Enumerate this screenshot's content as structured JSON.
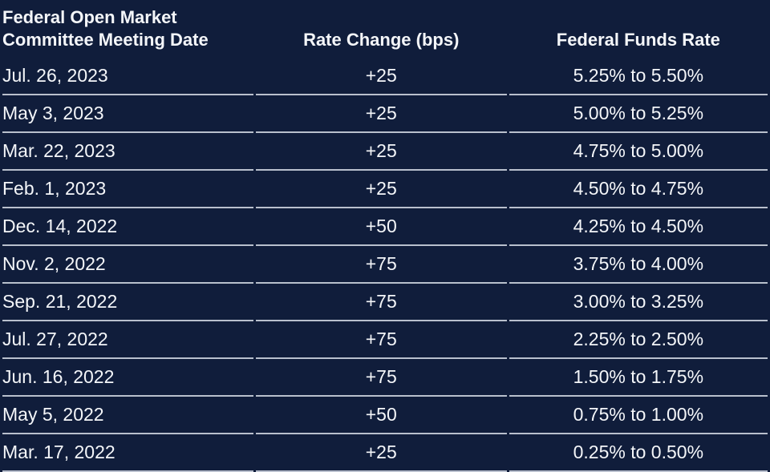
{
  "colors": {
    "background": "#101d3b",
    "text": "#f4f6f9",
    "divider": "#b9c0cd"
  },
  "table": {
    "headers": [
      {
        "line1": "Federal Open Market",
        "line2": "Committee Meeting Date"
      },
      {
        "line1": "Rate Change (bps)"
      },
      {
        "line1": "Federal Funds Rate"
      }
    ]
  },
  "chart_data": {
    "type": "table",
    "columns": [
      "Federal Open Market Committee Meeting Date",
      "Rate Change (bps)",
      "Federal Funds Rate"
    ],
    "rows": [
      [
        "Jul. 26, 2023",
        "+25",
        "5.25% to 5.50%"
      ],
      [
        "May 3, 2023",
        "+25",
        "5.00% to 5.25%"
      ],
      [
        "Mar. 22, 2023",
        "+25",
        "4.75% to 5.00%"
      ],
      [
        "Feb. 1, 2023",
        "+25",
        "4.50% to 4.75%"
      ],
      [
        "Dec. 14, 2022",
        "+50",
        "4.25% to 4.50%"
      ],
      [
        "Nov. 2, 2022",
        "+75",
        "3.75% to 4.00%"
      ],
      [
        "Sep. 21, 2022",
        "+75",
        "3.00% to 3.25%"
      ],
      [
        "Jul. 27, 2022",
        "+75",
        "2.25% to 2.50%"
      ],
      [
        "Jun. 16, 2022",
        "+75",
        "1.50% to 1.75%"
      ],
      [
        "May 5, 2022",
        "+50",
        "0.75% to 1.00%"
      ],
      [
        "Mar. 17, 2022",
        "+25",
        "0.25% to 0.50%"
      ]
    ],
    "rate_change_bps_numeric": [
      25,
      25,
      25,
      25,
      50,
      75,
      75,
      75,
      75,
      50,
      25
    ],
    "layout_hints": {
      "background": "dark-navy",
      "dividers": "thin light line under each data row, none under header",
      "alignment": [
        "left",
        "center",
        "center"
      ]
    }
  }
}
